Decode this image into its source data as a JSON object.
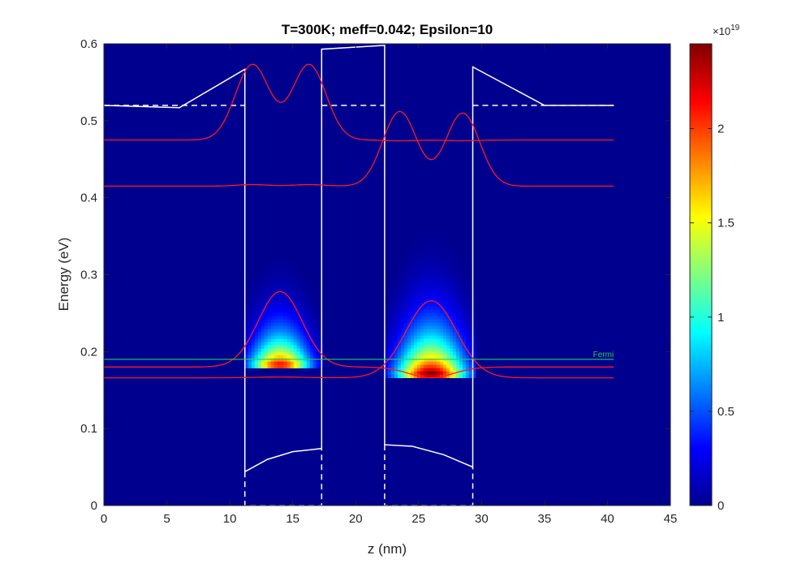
{
  "chart_data": {
    "type": "heatmap",
    "title": "T=300K; meff=0.042; Epsilon=10",
    "xlabel": "z (nm)",
    "ylabel": "Energy (eV)",
    "xlim": [
      0,
      45
    ],
    "ylim": [
      0,
      0.6
    ],
    "x_ticks": [
      "0",
      "5",
      "10",
      "15",
      "20",
      "25",
      "30",
      "35",
      "40",
      "45"
    ],
    "y_ticks": [
      "0",
      "0.1",
      "0.2",
      "0.3",
      "0.4",
      "0.5",
      "0.6"
    ],
    "colorbar": {
      "colormap": "jet",
      "exponent_label": "×10",
      "exponent": "19",
      "ticks": [
        "0",
        "0.5",
        "1",
        "1.5",
        "2"
      ],
      "min": 0,
      "max": 2.45
    },
    "colors": {
      "background": "#00008f",
      "band_profile": "#ffffff",
      "wavefunction": "#ff1a1a",
      "fermi": "#22cc55"
    },
    "density_blobs": [
      {
        "center_z": 14.0,
        "sigma_z": 1.6,
        "z_range": [
          11.2,
          17.3
        ],
        "e_min": 0.18,
        "peak_energy": 0.183,
        "decay_energy": 0.035,
        "peak_value": 2.2
      },
      {
        "center_z": 26.0,
        "sigma_z": 1.85,
        "z_range": [
          22.3,
          29.3
        ],
        "e_min": 0.166,
        "peak_energy": 0.172,
        "decay_energy": 0.045,
        "peak_value": 2.45
      }
    ],
    "band_profile": [
      {
        "z": 0,
        "e": 0.52
      },
      {
        "z": 6,
        "e": 0.517
      },
      {
        "z": 11.2,
        "e": 0.567
      },
      {
        "z": 11.2,
        "e": 0.044
      },
      {
        "z": 13,
        "e": 0.06
      },
      {
        "z": 15,
        "e": 0.07
      },
      {
        "z": 17.3,
        "e": 0.074
      },
      {
        "z": 17.3,
        "e": 0.593
      },
      {
        "z": 22.3,
        "e": 0.598
      },
      {
        "z": 22.3,
        "e": 0.079
      },
      {
        "z": 24.5,
        "e": 0.077
      },
      {
        "z": 27,
        "e": 0.066
      },
      {
        "z": 29.3,
        "e": 0.05
      },
      {
        "z": 29.3,
        "e": 0.57
      },
      {
        "z": 35,
        "e": 0.52
      },
      {
        "z": 40.5,
        "e": 0.52
      }
    ],
    "dashed_reference_lines": [
      {
        "points": [
          {
            "z": 0,
            "e": 0.52
          },
          {
            "z": 11.2,
            "e": 0.52
          }
        ]
      },
      {
        "points": [
          {
            "z": 17.3,
            "e": 0.52
          },
          {
            "z": 22.3,
            "e": 0.52
          }
        ]
      },
      {
        "points": [
          {
            "z": 29.3,
            "e": 0.52
          },
          {
            "z": 40.5,
            "e": 0.52
          }
        ]
      },
      {
        "points": [
          {
            "z": 11.2,
            "e": 0.044
          },
          {
            "z": 11.2,
            "e": 0.0
          },
          {
            "z": 17.3,
            "e": 0.0
          },
          {
            "z": 17.3,
            "e": 0.074
          }
        ]
      },
      {
        "points": [
          {
            "z": 22.3,
            "e": 0.079
          },
          {
            "z": 22.3,
            "e": 0.0
          },
          {
            "z": 29.3,
            "e": 0.0
          },
          {
            "z": 29.3,
            "e": 0.05
          }
        ]
      }
    ],
    "wavefunctions": [
      {
        "baseline": 0.166,
        "peaks": [
          {
            "z": 14.0,
            "amp": 0.001,
            "sigma": 2.0
          },
          {
            "z": 26.0,
            "amp": 0.1,
            "sigma": 2.0
          }
        ]
      },
      {
        "baseline": 0.18,
        "peaks": [
          {
            "z": 14.0,
            "amp": 0.098,
            "sigma": 1.75
          },
          {
            "z": 26.0,
            "amp": -0.014,
            "sigma": 1.75
          }
        ]
      },
      {
        "baseline": 0.415,
        "peaks": [
          {
            "z": 11.8,
            "amp": 0.002,
            "sigma": 1.3
          },
          {
            "z": 16.3,
            "amp": 0.002,
            "sigma": 1.3
          },
          {
            "z": 23.5,
            "amp": 0.097,
            "sigma": 1.35
          },
          {
            "z": 28.5,
            "amp": 0.095,
            "sigma": 1.35
          }
        ]
      },
      {
        "baseline": 0.475,
        "peaks": [
          {
            "z": 11.8,
            "amp": 0.098,
            "sigma": 1.35
          },
          {
            "z": 16.3,
            "amp": 0.098,
            "sigma": 1.35
          },
          {
            "z": 23.5,
            "amp": -0.001,
            "sigma": 1.3
          },
          {
            "z": 28.5,
            "amp": -0.001,
            "sigma": 1.3
          }
        ]
      }
    ],
    "fermi_level": {
      "label": "Fermi",
      "energy": 0.19,
      "z_range": [
        0,
        40.5
      ]
    }
  }
}
